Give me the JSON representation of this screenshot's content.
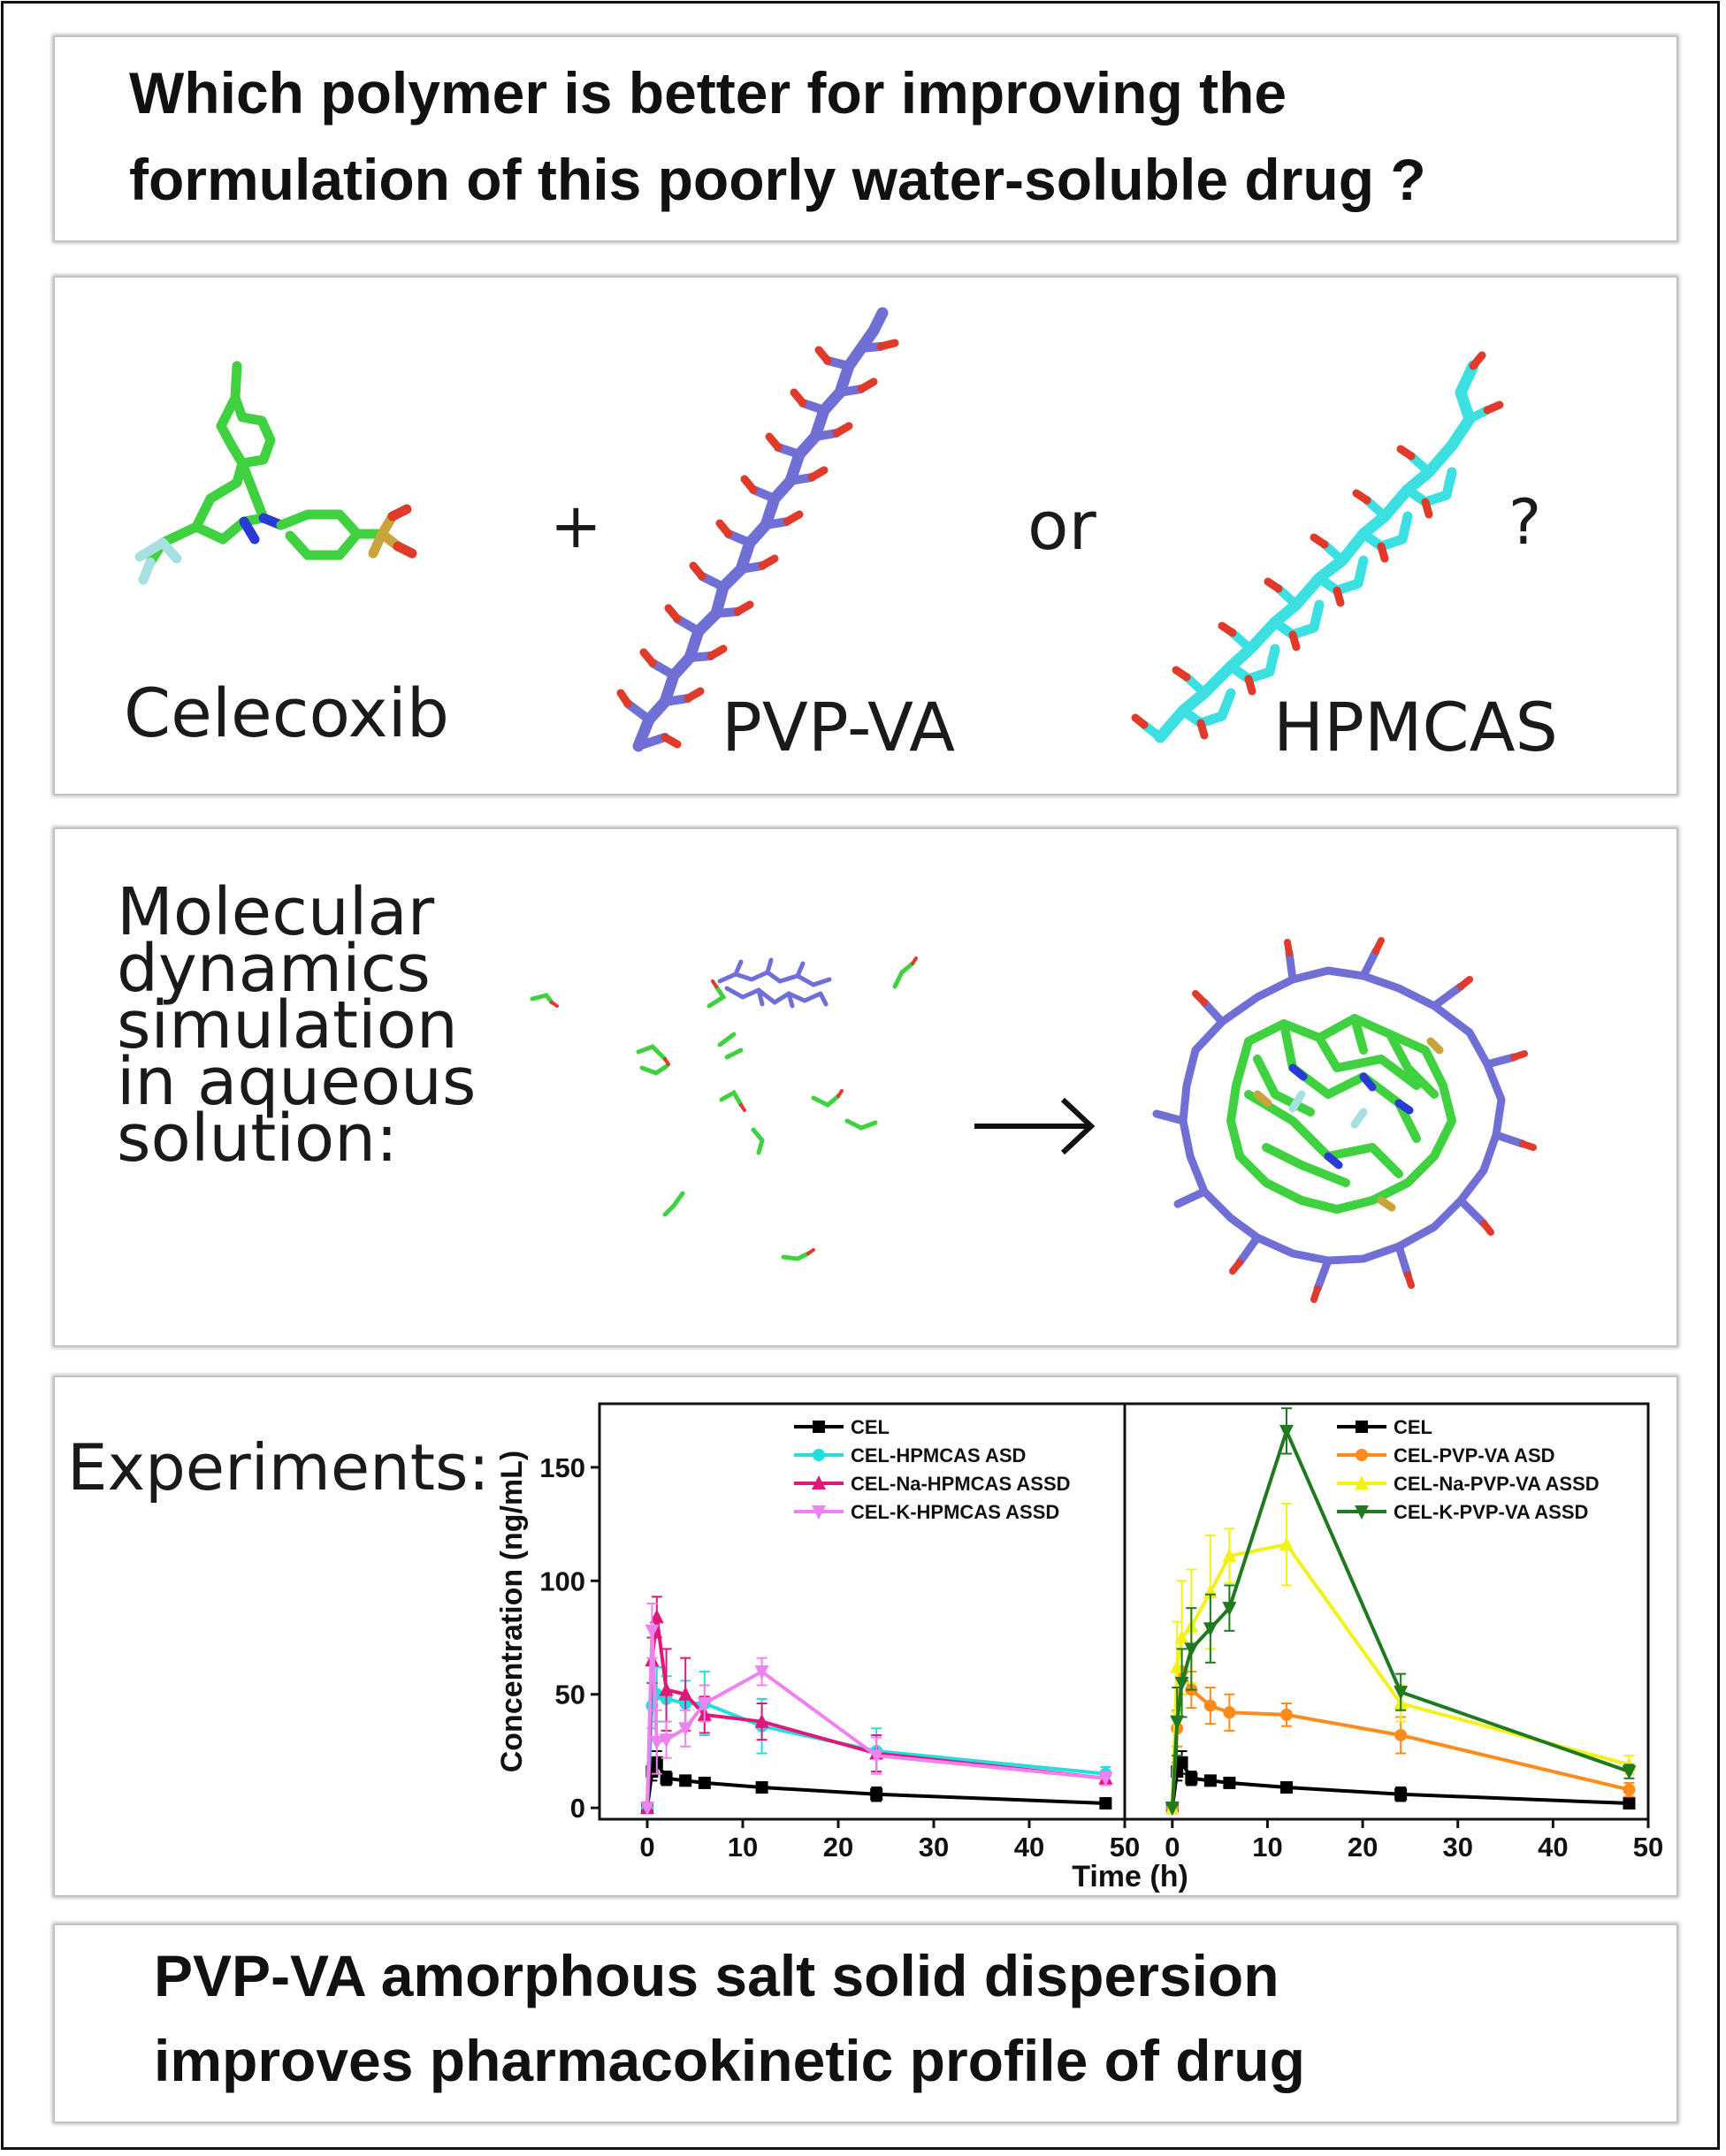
{
  "question": {
    "line1": "Which polymer is better for improving the",
    "line2": "formulation of this poorly water-soluble drug ?"
  },
  "molecules": {
    "drug_label": "Celecoxib",
    "plus": "+",
    "polymer1_label": "PVP-VA",
    "or": "or",
    "polymer2_label": "HPMCAS",
    "question_mark": "?"
  },
  "md": {
    "line1": "Molecular",
    "line2": "dynamics",
    "line3": "simulation",
    "line4": "in aqueous",
    "line5": "solution:",
    "arrow": "→"
  },
  "experiments": {
    "label": "Experiments:"
  },
  "conclusion": {
    "line1": "PVP-VA amorphous salt solid dispersion",
    "line2": "improves pharmacokinetic profile of drug"
  },
  "colors": {
    "drug_carbon": "#3fd13f",
    "pvpva_carbon": "#6f6fd6",
    "hpmcas_carbon": "#3de0e0",
    "oxygen": "#e03a2a",
    "nitrogen": "#2a3ad6",
    "sulfur": "#c8a43a",
    "fluorine": "#a6e0e0"
  },
  "chart_data": [
    {
      "type": "line",
      "xlabel": "Time (h)",
      "ylabel": "Concentration (ng/mL)",
      "xlim": [
        -5,
        50
      ],
      "ylim": [
        -5,
        178
      ],
      "xticks": [
        0,
        10,
        20,
        30,
        40,
        50
      ],
      "yticks": [
        0,
        50,
        100,
        150
      ],
      "legend_position": "top-right",
      "series": [
        {
          "name": "CEL",
          "color": "#000000",
          "marker": "square",
          "x": [
            0,
            0.5,
            1,
            2,
            4,
            6,
            12,
            24,
            48
          ],
          "y": [
            0,
            16,
            20,
            13,
            12,
            11,
            9,
            6,
            2
          ],
          "err": [
            0,
            4,
            5,
            3,
            2,
            2,
            2,
            3,
            1
          ]
        },
        {
          "name": "CEL-HPMCAS ASD",
          "color": "#22dede",
          "marker": "circle",
          "x": [
            0,
            0.5,
            1,
            2,
            4,
            6,
            12,
            24,
            48
          ],
          "y": [
            0,
            45,
            50,
            48,
            46,
            46,
            36,
            25,
            15
          ],
          "err": [
            0,
            10,
            12,
            10,
            10,
            14,
            12,
            10,
            3
          ]
        },
        {
          "name": "CEL-Na-HPMCAS ASSD",
          "color": "#e0187a",
          "marker": "triangle-up",
          "x": [
            0,
            0.5,
            1,
            2,
            4,
            6,
            12,
            24,
            48
          ],
          "y": [
            0,
            65,
            84,
            52,
            50,
            41,
            38,
            24,
            13
          ],
          "err": [
            0,
            10,
            9,
            18,
            16,
            8,
            8,
            8,
            3
          ]
        },
        {
          "name": "CEL-K-HPMCAS ASSD",
          "color": "#ee82ee",
          "marker": "triangle-down",
          "x": [
            0,
            0.5,
            1,
            2,
            4,
            6,
            12,
            24,
            48
          ],
          "y": [
            0,
            78,
            29,
            30,
            35,
            46,
            60,
            23,
            13
          ],
          "err": [
            0,
            12,
            14,
            8,
            8,
            8,
            6,
            8,
            3
          ]
        }
      ]
    },
    {
      "type": "line",
      "xlabel": "Time (h)",
      "ylabel": "",
      "xlim": [
        -5,
        50
      ],
      "ylim": [
        -5,
        178
      ],
      "xticks": [
        0,
        10,
        20,
        30,
        40,
        50
      ],
      "yticks": [],
      "legend_position": "top-right",
      "series": [
        {
          "name": "CEL",
          "color": "#000000",
          "marker": "square",
          "x": [
            0,
            0.5,
            1,
            2,
            4,
            6,
            12,
            24,
            48
          ],
          "y": [
            0,
            16,
            20,
            13,
            12,
            11,
            9,
            6,
            2
          ],
          "err": [
            0,
            4,
            5,
            3,
            2,
            2,
            2,
            3,
            1
          ]
        },
        {
          "name": "CEL-PVP-VA ASD",
          "color": "#ff8c1a",
          "marker": "circle",
          "x": [
            0,
            0.5,
            1,
            2,
            4,
            6,
            12,
            24,
            48
          ],
          "y": [
            0,
            35,
            60,
            52,
            45,
            42,
            41,
            32,
            8
          ],
          "err": [
            0,
            8,
            10,
            8,
            8,
            8,
            5,
            8,
            3
          ]
        },
        {
          "name": "CEL-Na-PVP-VA ASSD",
          "color": "#f2f21a",
          "marker": "triangle-up",
          "x": [
            0,
            0.5,
            1,
            2,
            4,
            6,
            12,
            24,
            48
          ],
          "y": [
            0,
            62,
            75,
            80,
            95,
            111,
            116,
            46,
            19
          ],
          "err": [
            0,
            20,
            25,
            25,
            25,
            12,
            18,
            8,
            4
          ]
        },
        {
          "name": "CEL-K-PVP-VA ASSD",
          "color": "#1f7a1f",
          "marker": "triangle-down",
          "x": [
            0,
            0.5,
            1,
            2,
            4,
            6,
            12,
            24,
            48
          ],
          "y": [
            0,
            38,
            55,
            70,
            79,
            88,
            166,
            51,
            16
          ],
          "err": [
            0,
            15,
            15,
            18,
            15,
            10,
            10,
            8,
            3
          ]
        }
      ]
    }
  ]
}
